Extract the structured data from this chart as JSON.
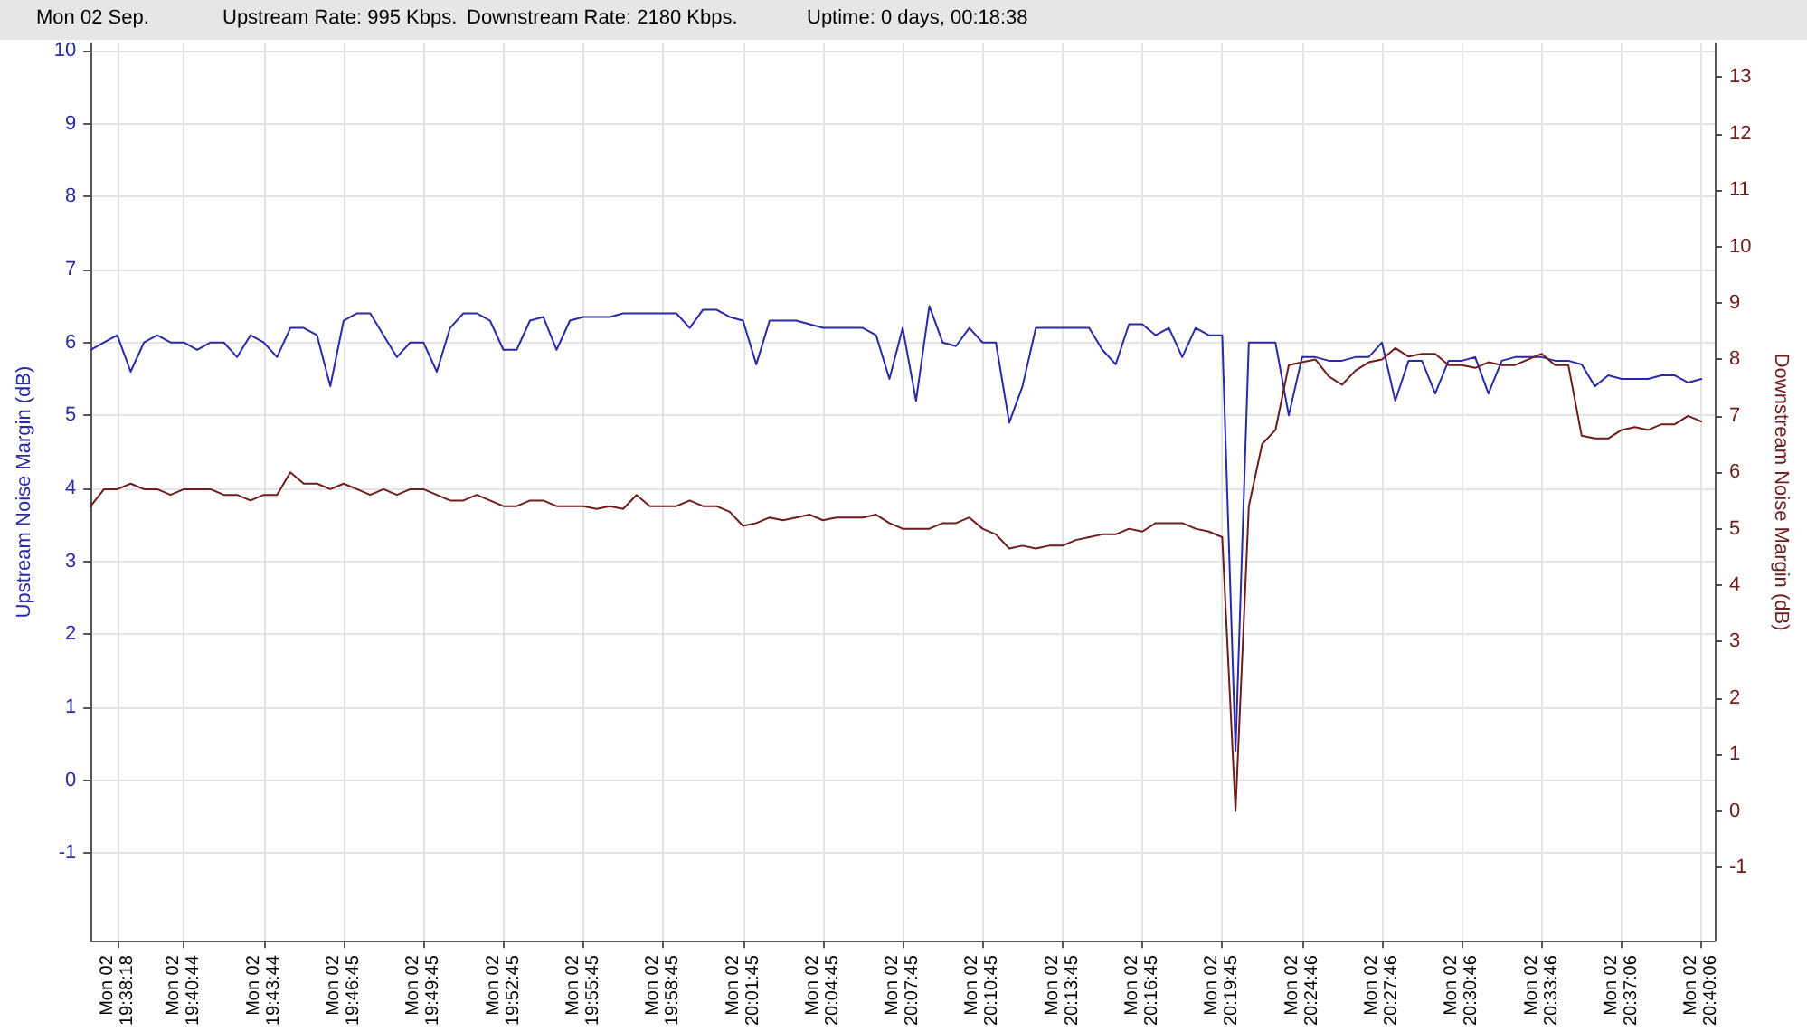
{
  "chart_data": {
    "type": "line",
    "annotations": [
      "Mon 02 Sep.",
      "Upstream Rate: 995 Kbps.",
      "Downstream Rate: 2180 Kbps.",
      "Uptime: 0 days, 00:18:38"
    ],
    "ylabel": "Upstream Noise Margin (dB)",
    "y2label": "Downstream Noise Margin (dB)",
    "categories": [
      null,
      null,
      "Mon 02\n19:38:18",
      null,
      null,
      null,
      null,
      "Mon 02\n19:40:44",
      null,
      null,
      null,
      null,
      null,
      "Mon 02\n19:43:44",
      null,
      null,
      null,
      null,
      null,
      "Mon 02\n19:46:45",
      null,
      null,
      null,
      null,
      null,
      "Mon 02\n19:49:45",
      null,
      null,
      null,
      null,
      null,
      "Mon 02\n19:52:45",
      null,
      null,
      null,
      null,
      null,
      "Mon 02\n19:55:45",
      null,
      null,
      null,
      null,
      null,
      "Mon 02\n19:58:45",
      null,
      null,
      null,
      null,
      null,
      "Mon 02\n20:01:45",
      null,
      null,
      null,
      null,
      null,
      "Mon 02\n20:04:45",
      null,
      null,
      null,
      null,
      null,
      "Mon 02\n20:07:45",
      null,
      null,
      null,
      null,
      null,
      "Mon 02\n20:10:45",
      null,
      null,
      null,
      null,
      null,
      "Mon 02\n20:13:45",
      null,
      null,
      null,
      null,
      null,
      "Mon 02\n20:16:45",
      null,
      null,
      null,
      null,
      null,
      "Mon 02\n20:19:45",
      null,
      null,
      null,
      null,
      null,
      "Mon 02\n20:24:46",
      null,
      null,
      null,
      null,
      null,
      "Mon 02\n20:27:46",
      null,
      null,
      null,
      null,
      null,
      "Mon 02\n20:30:46",
      null,
      null,
      null,
      null,
      null,
      "Mon 02\n20:33:46",
      null,
      null,
      null,
      null,
      null,
      "Mon 02\n20:37:06",
      null,
      null,
      null,
      null,
      null,
      "Mon 02\n20:40:06",
      null
    ],
    "series": [
      {
        "color": "#2a2aa6",
        "values": [
          5.9,
          6.0,
          6.1,
          5.6,
          6.0,
          6.1,
          6.0,
          6.0,
          5.9,
          6.0,
          6.0,
          5.8,
          6.1,
          6.0,
          5.8,
          6.2,
          6.2,
          6.1,
          5.4,
          6.3,
          6.4,
          6.4,
          6.1,
          5.8,
          6.0,
          6.0,
          5.6,
          6.2,
          6.4,
          6.4,
          6.3,
          5.9,
          5.9,
          6.3,
          6.35,
          5.9,
          6.3,
          6.35,
          6.35,
          6.35,
          6.4,
          6.4,
          6.4,
          6.4,
          6.4,
          6.2,
          6.45,
          6.45,
          6.35,
          6.3,
          5.7,
          6.3,
          6.3,
          6.3,
          6.25,
          6.2,
          6.2,
          6.2,
          6.2,
          6.1,
          5.5,
          6.2,
          5.2,
          6.5,
          6.0,
          5.95,
          6.2,
          6.0,
          6.0,
          4.9,
          5.4,
          6.2,
          6.2,
          6.2,
          6.2,
          6.2,
          5.9,
          5.7,
          6.25,
          6.25,
          6.1,
          6.2,
          5.8,
          6.2,
          6.1,
          6.1,
          0.4,
          6.0,
          6.0,
          6.0,
          5.0,
          5.8,
          5.8,
          5.75,
          5.75,
          5.8,
          5.8,
          6.0,
          5.2,
          5.75,
          5.75,
          5.3,
          5.75,
          5.75,
          5.8,
          5.3,
          5.75,
          5.8,
          5.8,
          5.8,
          5.75,
          5.75,
          5.7,
          5.4,
          5.55,
          5.5,
          5.5,
          5.5,
          5.55,
          5.55,
          5.45,
          5.5,
          null
        ]
      },
      {
        "color": "#6e1c1c",
        "axis": "y2",
        "values": [
          5.4,
          5.7,
          5.7,
          5.8,
          5.7,
          5.7,
          5.6,
          5.7,
          5.7,
          5.7,
          5.6,
          5.6,
          5.5,
          5.6,
          5.6,
          6.0,
          5.8,
          5.8,
          5.7,
          5.8,
          5.7,
          5.6,
          5.7,
          5.6,
          5.7,
          5.7,
          5.6,
          5.5,
          5.5,
          5.6,
          5.5,
          5.4,
          5.4,
          5.5,
          5.5,
          5.4,
          5.4,
          5.4,
          5.35,
          5.4,
          5.35,
          5.6,
          5.4,
          5.4,
          5.4,
          5.5,
          5.4,
          5.4,
          5.3,
          5.05,
          5.1,
          5.2,
          5.15,
          5.2,
          5.25,
          5.15,
          5.2,
          5.2,
          5.2,
          5.25,
          5.1,
          5.0,
          5.0,
          5.0,
          5.1,
          5.1,
          5.2,
          5.0,
          4.9,
          4.65,
          4.7,
          4.65,
          4.7,
          4.7,
          4.8,
          4.85,
          4.9,
          4.9,
          5.0,
          4.95,
          5.1,
          5.1,
          5.1,
          5.0,
          4.95,
          4.85,
          0.0,
          5.4,
          6.5,
          6.75,
          7.9,
          7.95,
          8.0,
          7.7,
          7.55,
          7.8,
          7.95,
          8.0,
          8.2,
          8.05,
          8.1,
          8.1,
          7.9,
          7.9,
          7.85,
          7.95,
          7.9,
          7.9,
          8.0,
          8.1,
          7.9,
          7.9,
          6.65,
          6.6,
          6.6,
          6.75,
          6.8,
          6.75,
          6.85,
          6.85,
          7.0,
          6.9,
          null
        ]
      }
    ],
    "ylim": [
      -2.2,
      10.1
    ],
    "yticks": [
      -1,
      0,
      1,
      2,
      3,
      4,
      5,
      6,
      7,
      8,
      9,
      10
    ],
    "y2lim": [
      -2.3,
      13.6
    ],
    "y2ticks": [
      -1,
      0,
      1,
      2,
      3,
      4,
      5,
      6,
      7,
      8,
      9,
      10,
      11,
      12,
      13
    ],
    "grid": true,
    "marker": "none",
    "line_style": "solid"
  }
}
